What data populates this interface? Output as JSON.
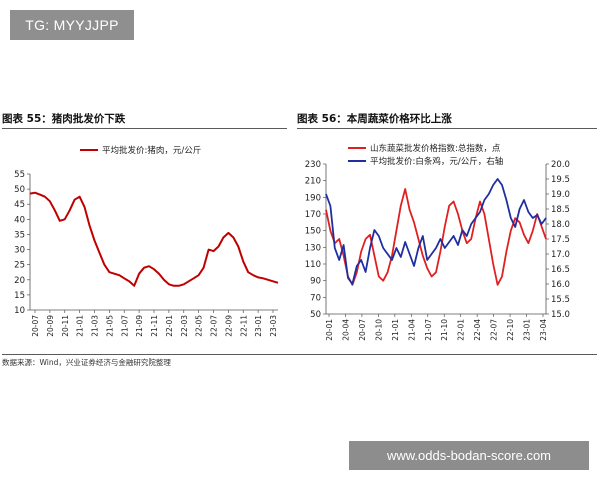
{
  "badge": {
    "text": "TG: MYYJJPP"
  },
  "watermark": {
    "text": "www.odds-bodan-score.com"
  },
  "source_note": "数据来源：Wind，兴业证券经济与金融研究院整理",
  "colors": {
    "pork": "#c00000",
    "vegetable": "#e02020",
    "cabbage": "#1f2f9f",
    "axis": "#555555"
  },
  "chart_data": [
    {
      "type": "line",
      "title": "图表 55：猪肉批发价下跌",
      "ylim": [
        10,
        55
      ],
      "yticks": [
        "10",
        "15",
        "20",
        "25",
        "30",
        "35",
        "40",
        "45",
        "50",
        "55"
      ],
      "xticks": [
        "20-07",
        "20-09",
        "20-11",
        "21-01",
        "21-03",
        "21-05",
        "21-07",
        "21-09",
        "21-11",
        "22-01",
        "22-03",
        "22-05",
        "22-07",
        "22-09",
        "22-11",
        "23-01",
        "23-03"
      ],
      "series": [
        {
          "name": "平均批发价:猪肉，元/公斤",
          "x": [
            0,
            0.02,
            0.04,
            0.06,
            0.08,
            0.1,
            0.12,
            0.14,
            0.16,
            0.18,
            0.2,
            0.22,
            0.24,
            0.26,
            0.28,
            0.3,
            0.32,
            0.34,
            0.36,
            0.38,
            0.4,
            0.42,
            0.44,
            0.46,
            0.48,
            0.5,
            0.52,
            0.54,
            0.56,
            0.58,
            0.6,
            0.62,
            0.64,
            0.66,
            0.68,
            0.7,
            0.72,
            0.74,
            0.76,
            0.78,
            0.8,
            0.82,
            0.84,
            0.86,
            0.88,
            0.9,
            0.92,
            0.94,
            0.96,
            0.98,
            1.0
          ],
          "values": [
            48.5,
            48.8,
            48.2,
            47.5,
            46,
            43,
            39.5,
            40,
            43,
            46.5,
            47.5,
            44,
            38,
            33,
            29,
            25,
            22.5,
            22,
            21.5,
            20.5,
            19.5,
            18,
            22,
            24,
            24.5,
            23.5,
            22,
            20,
            18.5,
            18,
            18,
            18.5,
            19.5,
            20.5,
            21.5,
            24,
            30,
            29.5,
            31,
            34,
            35.5,
            34,
            31,
            26,
            22.5,
            21.5,
            20.8,
            20.5,
            20,
            19.5,
            19
          ]
        }
      ]
    },
    {
      "type": "line",
      "title": "图表 56：本周蔬菜价格环比上涨",
      "y_left_lim": [
        50,
        230
      ],
      "y_left_ticks": [
        "50",
        "70",
        "90",
        "110",
        "130",
        "150",
        "170",
        "190",
        "210",
        "230"
      ],
      "y_right_lim": [
        15.0,
        20.0
      ],
      "y_right_ticks": [
        "15.0",
        "15.5",
        "16.0",
        "16.5",
        "17.0",
        "17.5",
        "18.0",
        "18.5",
        "19.0",
        "19.5",
        "20.0"
      ],
      "xticks": [
        "20-01",
        "20-04",
        "20-07",
        "20-10",
        "21-01",
        "21-04",
        "21-07",
        "21-10",
        "22-01",
        "22-04",
        "22-07",
        "22-10",
        "23-01",
        "23-04"
      ],
      "series": [
        {
          "name": "山东蔬菜批发价格指数:总指数，点",
          "axis": "left",
          "x": [
            0,
            0.02,
            0.04,
            0.06,
            0.08,
            0.1,
            0.12,
            0.14,
            0.16,
            0.18,
            0.2,
            0.22,
            0.24,
            0.26,
            0.28,
            0.3,
            0.32,
            0.34,
            0.36,
            0.38,
            0.4,
            0.42,
            0.44,
            0.46,
            0.48,
            0.5,
            0.52,
            0.54,
            0.56,
            0.58,
            0.6,
            0.62,
            0.64,
            0.66,
            0.68,
            0.7,
            0.72,
            0.74,
            0.76,
            0.78,
            0.8,
            0.82,
            0.84,
            0.86,
            0.88,
            0.9,
            0.92,
            0.94,
            0.96,
            0.98,
            1.0
          ],
          "values": [
            175,
            150,
            135,
            140,
            120,
            95,
            85,
            100,
            125,
            140,
            145,
            120,
            95,
            90,
            100,
            120,
            150,
            180,
            200,
            175,
            160,
            140,
            120,
            105,
            95,
            100,
            125,
            155,
            180,
            185,
            170,
            150,
            135,
            140,
            165,
            185,
            170,
            140,
            110,
            85,
            95,
            125,
            150,
            165,
            160,
            145,
            135,
            150,
            170,
            155,
            140
          ]
        },
        {
          "name": "平均批发价:白条鸡，元/公斤，右轴",
          "axis": "right",
          "x": [
            0,
            0.02,
            0.04,
            0.06,
            0.08,
            0.1,
            0.12,
            0.14,
            0.16,
            0.18,
            0.2,
            0.22,
            0.24,
            0.26,
            0.28,
            0.3,
            0.32,
            0.34,
            0.36,
            0.38,
            0.4,
            0.42,
            0.44,
            0.46,
            0.48,
            0.5,
            0.52,
            0.54,
            0.56,
            0.58,
            0.6,
            0.62,
            0.64,
            0.66,
            0.68,
            0.7,
            0.72,
            0.74,
            0.76,
            0.78,
            0.8,
            0.82,
            0.84,
            0.86,
            0.88,
            0.9,
            0.92,
            0.94,
            0.96,
            0.98,
            1.0
          ],
          "values": [
            19.0,
            18.6,
            17.2,
            16.8,
            17.3,
            16.2,
            16.0,
            16.6,
            16.8,
            16.4,
            17.2,
            17.8,
            17.6,
            17.2,
            17.0,
            16.8,
            17.2,
            16.9,
            17.4,
            17.0,
            16.6,
            17.2,
            17.6,
            16.8,
            17.0,
            17.2,
            17.5,
            17.2,
            17.4,
            17.6,
            17.3,
            17.8,
            17.6,
            18.0,
            18.2,
            18.4,
            18.8,
            19.0,
            19.3,
            19.5,
            19.3,
            18.8,
            18.2,
            17.9,
            18.5,
            18.8,
            18.4,
            18.2,
            18.3,
            18.0,
            18.2
          ]
        }
      ]
    }
  ]
}
